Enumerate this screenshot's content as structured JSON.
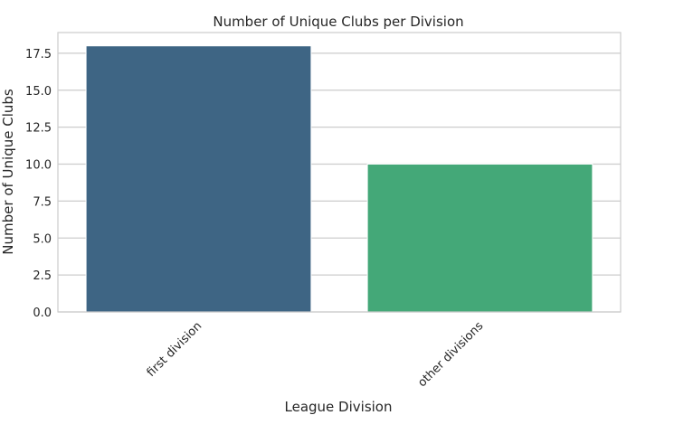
{
  "chart_data": {
    "type": "bar",
    "title": "Number of Unique Clubs per Division",
    "xlabel": "League Division",
    "ylabel": "Number of Unique Clubs",
    "categories": [
      "first division",
      "other divisions"
    ],
    "values": [
      18,
      10
    ],
    "colors": [
      "#3e6584",
      "#44a878"
    ],
    "ylim": [
      0,
      18.9
    ],
    "yticks": [
      0.0,
      2.5,
      5.0,
      7.5,
      10.0,
      12.5,
      15.0,
      17.5
    ],
    "grid": "horizontal"
  }
}
